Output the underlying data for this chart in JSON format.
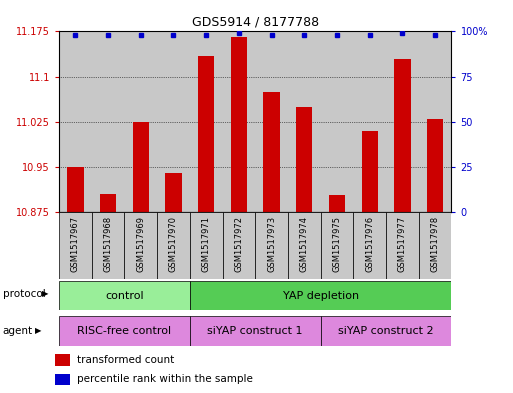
{
  "title": "GDS5914 / 8177788",
  "samples": [
    "GSM1517967",
    "GSM1517968",
    "GSM1517969",
    "GSM1517970",
    "GSM1517971",
    "GSM1517972",
    "GSM1517973",
    "GSM1517974",
    "GSM1517975",
    "GSM1517976",
    "GSM1517977",
    "GSM1517978"
  ],
  "bar_values": [
    10.95,
    10.905,
    11.025,
    10.94,
    11.135,
    11.165,
    11.075,
    11.05,
    10.903,
    11.01,
    11.13,
    11.03
  ],
  "bar_base": 10.875,
  "dot_values": [
    98,
    98,
    98,
    98,
    98,
    99,
    98,
    98,
    98,
    98,
    99,
    98
  ],
  "ylim_left": [
    10.875,
    11.175
  ],
  "ylim_right": [
    0,
    100
  ],
  "yticks_left": [
    10.875,
    10.95,
    11.025,
    11.1,
    11.175
  ],
  "yticks_right": [
    0,
    25,
    50,
    75,
    100
  ],
  "ytick_labels_left": [
    "10.875",
    "10.95",
    "11.025",
    "11.1",
    "11.175"
  ],
  "ytick_labels_right": [
    "0",
    "25",
    "50",
    "75",
    "100%"
  ],
  "bar_color": "#cc0000",
  "dot_color": "#0000cc",
  "protocol_groups": [
    {
      "label": "control",
      "start": 0,
      "end": 4,
      "color": "#99ee99"
    },
    {
      "label": "YAP depletion",
      "start": 4,
      "end": 12,
      "color": "#55cc55"
    }
  ],
  "agent_groups": [
    {
      "label": "RISC-free control",
      "start": 0,
      "end": 4,
      "color": "#dd88dd"
    },
    {
      "label": "siYAP construct 1",
      "start": 4,
      "end": 8,
      "color": "#dd88dd"
    },
    {
      "label": "siYAP construct 2",
      "start": 8,
      "end": 12,
      "color": "#dd88dd"
    }
  ],
  "legend_items": [
    {
      "label": "transformed count",
      "color": "#cc0000"
    },
    {
      "label": "percentile rank within the sample",
      "color": "#0000cc"
    }
  ],
  "label_protocol": "protocol",
  "label_agent": "agent",
  "bg_sample": "#c8c8c8"
}
